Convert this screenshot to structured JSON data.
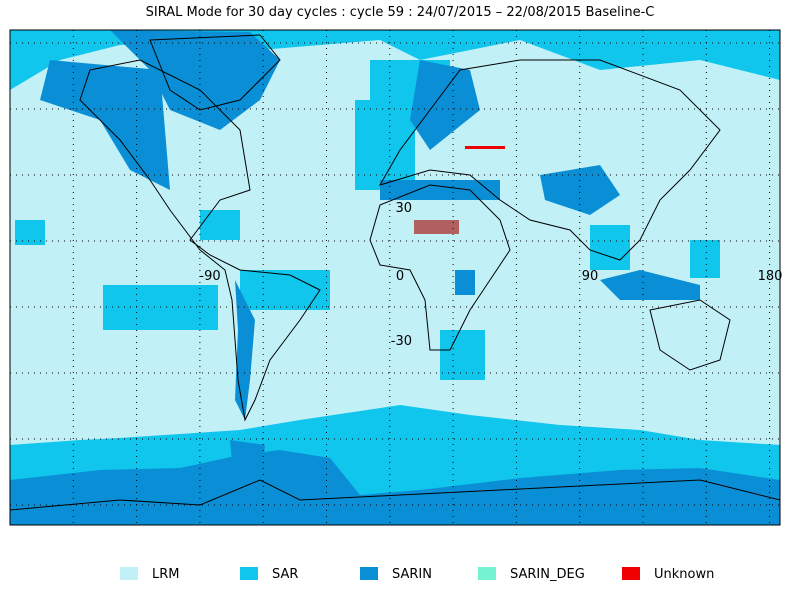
{
  "header": {
    "title": "SIRAL Mode for 30 day cycles : cycle 59 : 24/07/2015 – 22/08/2015 Baseline-C"
  },
  "map": {
    "longitude_labels": [
      "-90",
      "0",
      "90",
      "180"
    ],
    "latitude_labels": [
      "30",
      "-30"
    ]
  },
  "legend": {
    "items": [
      {
        "name": "LRM",
        "color": "#c2f0f7"
      },
      {
        "name": "SAR",
        "color": "#10c6ec"
      },
      {
        "name": "SARIN",
        "color": "#0a8fd6"
      },
      {
        "name": "SARIN_DEG",
        "color": "#74f2d2"
      },
      {
        "name": "Unknown",
        "color": "#f00000"
      }
    ]
  }
}
